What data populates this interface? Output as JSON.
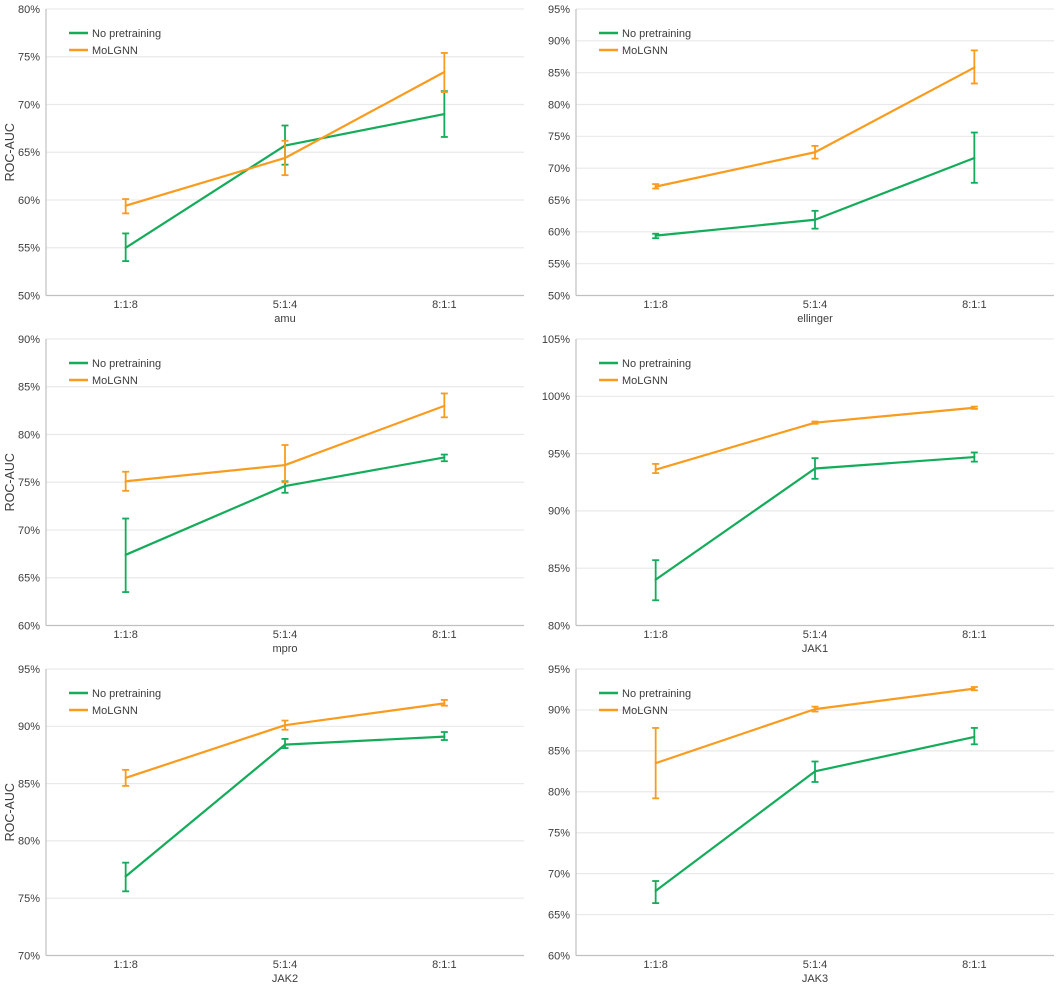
{
  "figure": {
    "name": "roc-auc-comparison-grid"
  },
  "colors": {
    "no_pretraining": "#14ac5a",
    "molgnn": "#f99c1e",
    "gridline": "#e9e9e9",
    "axis": "#c0c0c0",
    "text": "#3c3c3c"
  },
  "legend": {
    "items": [
      "No pretraining",
      "MoLGNN"
    ]
  },
  "chart_data": [
    {
      "type": "line",
      "title": "amu",
      "xlabel": "amu",
      "ylabel": "ROC-AUC",
      "categories": [
        "1:1:8",
        "5:1:4",
        "8:1:1"
      ],
      "ylim": [
        50,
        80
      ],
      "yticks_percent": [
        80,
        75,
        70,
        65,
        60,
        55,
        50
      ],
      "grid": true,
      "legend_position": "top-left",
      "series": [
        {
          "name": "No pretraining",
          "color": "#14ac5a",
          "values": [
            55.0,
            65.7,
            69.0
          ],
          "err_low": [
            53.6,
            63.7,
            66.6
          ],
          "err_high": [
            56.5,
            67.8,
            71.4
          ]
        },
        {
          "name": "MoLGNN",
          "color": "#f99c1e",
          "values": [
            59.4,
            64.4,
            73.4
          ],
          "err_low": [
            58.6,
            62.6,
            71.3
          ],
          "err_high": [
            60.1,
            66.2,
            75.4
          ]
        }
      ]
    },
    {
      "type": "line",
      "title": "ellinger",
      "xlabel": "ellinger",
      "ylabel": "",
      "categories": [
        "1:1:8",
        "5:1:4",
        "8:1:1"
      ],
      "ylim": [
        50,
        95
      ],
      "yticks_percent": [
        95,
        90,
        85,
        80,
        75,
        70,
        65,
        60,
        55,
        50
      ],
      "grid": true,
      "legend_position": "top-left",
      "series": [
        {
          "name": "No pretraining",
          "color": "#14ac5a",
          "values": [
            59.4,
            61.9,
            71.6
          ],
          "err_low": [
            59.0,
            60.5,
            67.7
          ],
          "err_high": [
            59.7,
            63.3,
            75.6
          ]
        },
        {
          "name": "MoLGNN",
          "color": "#f99c1e",
          "values": [
            67.1,
            72.5,
            85.8
          ],
          "err_low": [
            66.8,
            71.5,
            83.3
          ],
          "err_high": [
            67.5,
            73.5,
            88.5
          ]
        }
      ]
    },
    {
      "type": "line",
      "title": "mpro",
      "xlabel": "mpro",
      "ylabel": "ROC-AUC",
      "categories": [
        "1:1:8",
        "5:1:4",
        "8:1:1"
      ],
      "ylim": [
        60,
        90
      ],
      "yticks_percent": [
        90,
        85,
        80,
        75,
        70,
        65,
        60
      ],
      "grid": true,
      "legend_position": "top-left",
      "series": [
        {
          "name": "No pretraining",
          "color": "#14ac5a",
          "values": [
            67.4,
            74.6,
            77.6
          ],
          "err_low": [
            63.5,
            73.9,
            77.2
          ],
          "err_high": [
            71.2,
            75.1,
            77.9
          ]
        },
        {
          "name": "MoLGNN",
          "color": "#f99c1e",
          "values": [
            75.1,
            76.8,
            83.0
          ],
          "err_low": [
            74.1,
            75.0,
            81.8
          ],
          "err_high": [
            76.1,
            78.9,
            84.3
          ]
        }
      ]
    },
    {
      "type": "line",
      "title": "JAK1",
      "xlabel": "JAK1",
      "ylabel": "",
      "categories": [
        "1:1:8",
        "5:1:4",
        "8:1:1"
      ],
      "ylim": [
        80,
        105
      ],
      "yticks_percent": [
        105,
        100,
        95,
        90,
        85,
        80
      ],
      "grid": true,
      "legend_position": "top-left",
      "series": [
        {
          "name": "No pretraining",
          "color": "#14ac5a",
          "values": [
            84.0,
            93.7,
            94.7
          ],
          "err_low": [
            82.2,
            92.8,
            94.3
          ],
          "err_high": [
            85.7,
            94.6,
            95.1
          ]
        },
        {
          "name": "MoLGNN",
          "color": "#f99c1e",
          "values": [
            93.6,
            97.7,
            99.0
          ],
          "err_low": [
            93.3,
            97.6,
            98.9
          ],
          "err_high": [
            94.1,
            97.8,
            99.1
          ]
        }
      ]
    },
    {
      "type": "line",
      "title": "JAK2",
      "xlabel": "JAK2",
      "ylabel": "ROC-AUC",
      "categories": [
        "1:1:8",
        "5:1:4",
        "8:1:1"
      ],
      "ylim": [
        70,
        95
      ],
      "yticks_percent": [
        95,
        90,
        85,
        80,
        75,
        70
      ],
      "grid": true,
      "legend_position": "top-left",
      "series": [
        {
          "name": "No pretraining",
          "color": "#14ac5a",
          "values": [
            76.9,
            88.4,
            89.1
          ],
          "err_low": [
            75.6,
            88.1,
            88.8
          ],
          "err_high": [
            78.1,
            88.9,
            89.5
          ]
        },
        {
          "name": "MoLGNN",
          "color": "#f99c1e",
          "values": [
            85.5,
            90.1,
            92.0
          ],
          "err_low": [
            84.8,
            89.7,
            91.8
          ],
          "err_high": [
            86.2,
            90.5,
            92.3
          ]
        }
      ]
    },
    {
      "type": "line",
      "title": "JAK3",
      "xlabel": "JAK3",
      "ylabel": "",
      "categories": [
        "1:1:8",
        "5:1:4",
        "8:1:1"
      ],
      "ylim": [
        60,
        95
      ],
      "yticks_percent": [
        95,
        90,
        85,
        80,
        75,
        70,
        65,
        60
      ],
      "grid": true,
      "legend_position": "top-left",
      "series": [
        {
          "name": "No pretraining",
          "color": "#14ac5a",
          "values": [
            67.9,
            82.5,
            86.7
          ],
          "err_low": [
            66.4,
            81.2,
            85.8
          ],
          "err_high": [
            69.1,
            83.7,
            87.8
          ]
        },
        {
          "name": "MoLGNN",
          "color": "#f99c1e",
          "values": [
            83.5,
            90.1,
            92.6
          ],
          "err_low": [
            79.2,
            89.8,
            92.4
          ],
          "err_high": [
            87.8,
            90.4,
            92.8
          ]
        }
      ]
    }
  ]
}
